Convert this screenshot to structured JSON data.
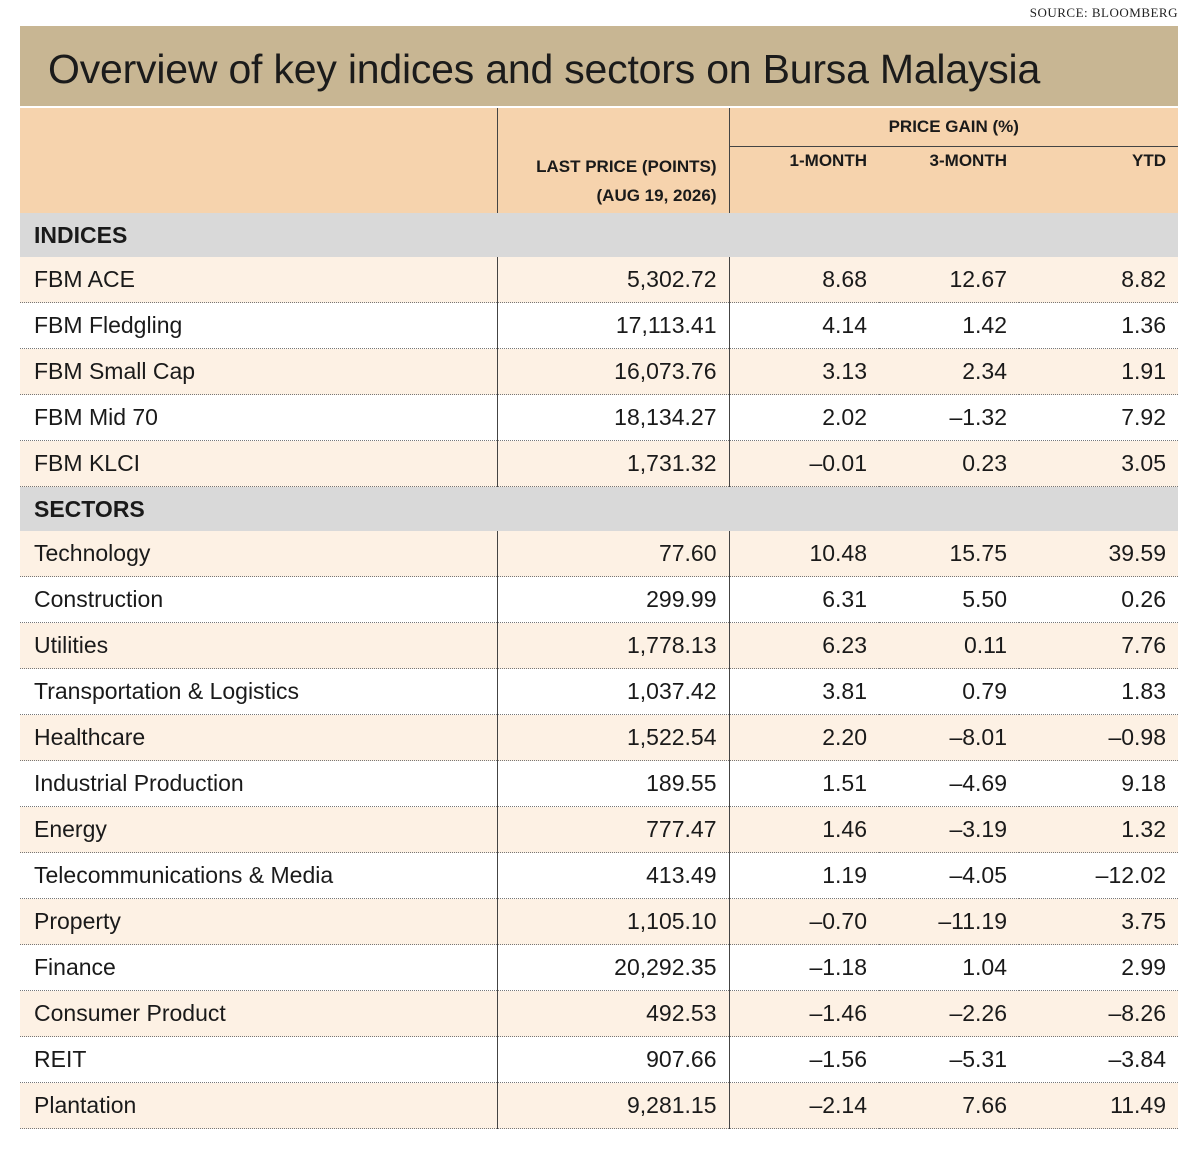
{
  "source": "SOURCE: BLOOMBERG",
  "colors": {
    "title_bar": "#c8b693",
    "header": "#f6d3ad",
    "section": "#d9d9d9",
    "alt_row": "#fdf1e4"
  },
  "chart_data": {
    "type": "table",
    "title": "Overview of key indices and sectors on Bursa Malaysia",
    "columns": {
      "last_price_line1": "LAST PRICE (POINTS)",
      "last_price_line2": "(AUG 19, 2026)",
      "price_gain": "PRICE GAIN (%)",
      "one_month": "1-MONTH",
      "three_month": "3-MONTH",
      "ytd": "YTD"
    },
    "sections": [
      {
        "label": "INDICES",
        "rows": [
          {
            "name": "FBM ACE",
            "last_price": "5,302.72",
            "m1": "8.68",
            "m3": "12.67",
            "ytd": "8.82"
          },
          {
            "name": "FBM Fledgling",
            "last_price": "17,113.41",
            "m1": "4.14",
            "m3": "1.42",
            "ytd": "1.36"
          },
          {
            "name": "FBM Small Cap",
            "last_price": "16,073.76",
            "m1": "3.13",
            "m3": "2.34",
            "ytd": "1.91"
          },
          {
            "name": "FBM Mid 70",
            "last_price": "18,134.27",
            "m1": "2.02",
            "m3": "–1.32",
            "ytd": "7.92"
          },
          {
            "name": "FBM KLCI",
            "last_price": "1,731.32",
            "m1": "–0.01",
            "m3": "0.23",
            "ytd": "3.05"
          }
        ]
      },
      {
        "label": "SECTORS",
        "rows": [
          {
            "name": "Technology",
            "last_price": "77.60",
            "m1": "10.48",
            "m3": "15.75",
            "ytd": "39.59"
          },
          {
            "name": "Construction",
            "last_price": "299.99",
            "m1": "6.31",
            "m3": "5.50",
            "ytd": "0.26"
          },
          {
            "name": "Utilities",
            "last_price": "1,778.13",
            "m1": "6.23",
            "m3": "0.11",
            "ytd": "7.76"
          },
          {
            "name": "Transportation & Logistics",
            "last_price": "1,037.42",
            "m1": "3.81",
            "m3": "0.79",
            "ytd": "1.83"
          },
          {
            "name": "Healthcare",
            "last_price": "1,522.54",
            "m1": "2.20",
            "m3": "–8.01",
            "ytd": "–0.98"
          },
          {
            "name": "Industrial Production",
            "last_price": "189.55",
            "m1": "1.51",
            "m3": "–4.69",
            "ytd": "9.18"
          },
          {
            "name": "Energy",
            "last_price": "777.47",
            "m1": "1.46",
            "m3": "–3.19",
            "ytd": "1.32"
          },
          {
            "name": "Telecommunications & Media",
            "last_price": "413.49",
            "m1": "1.19",
            "m3": "–4.05",
            "ytd": "–12.02"
          },
          {
            "name": "Property",
            "last_price": "1,105.10",
            "m1": "–0.70",
            "m3": "–11.19",
            "ytd": "3.75"
          },
          {
            "name": "Finance",
            "last_price": "20,292.35",
            "m1": "–1.18",
            "m3": "1.04",
            "ytd": "2.99"
          },
          {
            "name": "Consumer Product",
            "last_price": "492.53",
            "m1": "–1.46",
            "m3": "–2.26",
            "ytd": "–8.26"
          },
          {
            "name": "REIT",
            "last_price": "907.66",
            "m1": "–1.56",
            "m3": "–5.31",
            "ytd": "–3.84"
          },
          {
            "name": "Plantation",
            "last_price": "9,281.15",
            "m1": "–2.14",
            "m3": "7.66",
            "ytd": "11.49"
          }
        ]
      }
    ]
  }
}
